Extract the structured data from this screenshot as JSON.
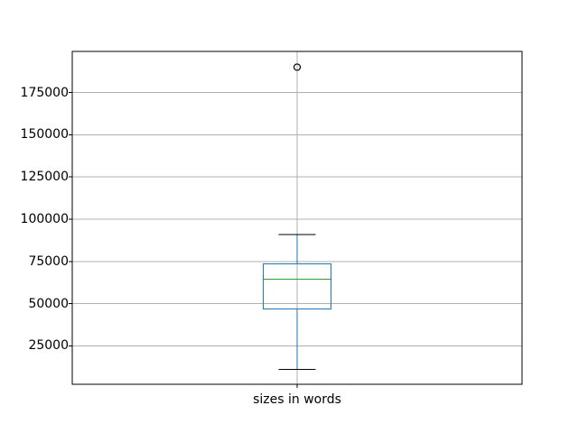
{
  "chart_data": {
    "type": "boxplot",
    "title": "",
    "xlabel": "sizes in words",
    "ylabel": "",
    "ylim": [
      2300,
      199300
    ],
    "yticks": [
      25000,
      50000,
      75000,
      100000,
      125000,
      150000,
      175000
    ],
    "ytick_labels": [
      "25000",
      "50000",
      "75000",
      "100000",
      "125000",
      "150000",
      "175000"
    ],
    "grid": true,
    "legend_position": "none",
    "series": [
      {
        "name": "sizes in words",
        "whisker_low": 11000,
        "q1": 46800,
        "median": 64600,
        "q3": 73500,
        "whisker_high": 91000,
        "outliers": [
          190000
        ]
      }
    ],
    "colors": {
      "box": "#1f77b4",
      "whisker": "#1f77b4",
      "median": "#2ca02c",
      "cap": "#000000",
      "outlier": "#000000",
      "grid": "#b0b0b0",
      "axis": "#000000",
      "background": "#ffffff"
    }
  }
}
